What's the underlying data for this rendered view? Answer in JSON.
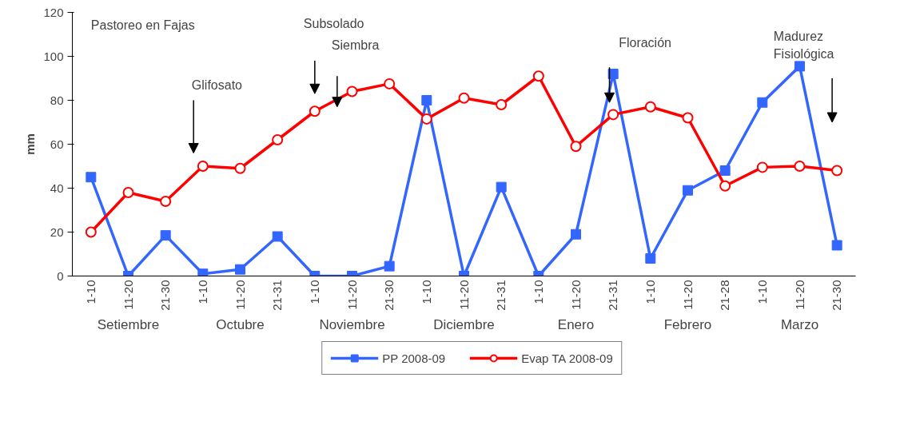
{
  "chart_data": {
    "type": "line",
    "ylabel": "mm",
    "categories": [
      "1-10",
      "11-20",
      "21-30",
      "1-10",
      "11-20",
      "21-31",
      "1-10",
      "11-20",
      "21-30",
      "1-10",
      "11-20",
      "21-31",
      "1-10",
      "11-20",
      "21-31",
      "1-10",
      "11-20",
      "21-28",
      "1-10",
      "11-20",
      "21-30"
    ],
    "series": [
      {
        "name": "PP 2008-09",
        "color": "#3366ff",
        "marker": "square",
        "values": [
          45,
          0,
          18.5,
          1,
          3,
          18,
          0,
          0,
          4.5,
          80,
          0,
          40.5,
          0,
          19,
          92,
          8,
          39,
          48,
          79,
          95.5,
          14
        ]
      },
      {
        "name": "Evap TA 2008-09",
        "color": "#ff0000",
        "marker": "circle",
        "values": [
          20,
          38,
          34,
          50,
          49,
          62,
          75,
          84,
          87.5,
          71.5,
          81,
          78,
          91,
          59,
          73.5,
          77,
          72,
          41,
          49.5,
          50,
          48
        ]
      }
    ],
    "ylim": [
      0,
      120
    ],
    "yticks": [
      0,
      20,
      40,
      60,
      80,
      100,
      120
    ],
    "grid": false,
    "legend": "bottom",
    "annotations": [
      "Setiembre",
      "Octubre",
      "Noviembre",
      "Diciembre",
      "Enero",
      "Febrero",
      "Marzo",
      "Pastoreo en Fajas",
      "Glifosato",
      "Subsolado",
      "Siembra",
      "Floración",
      "Madurez Fisiológica"
    ]
  }
}
